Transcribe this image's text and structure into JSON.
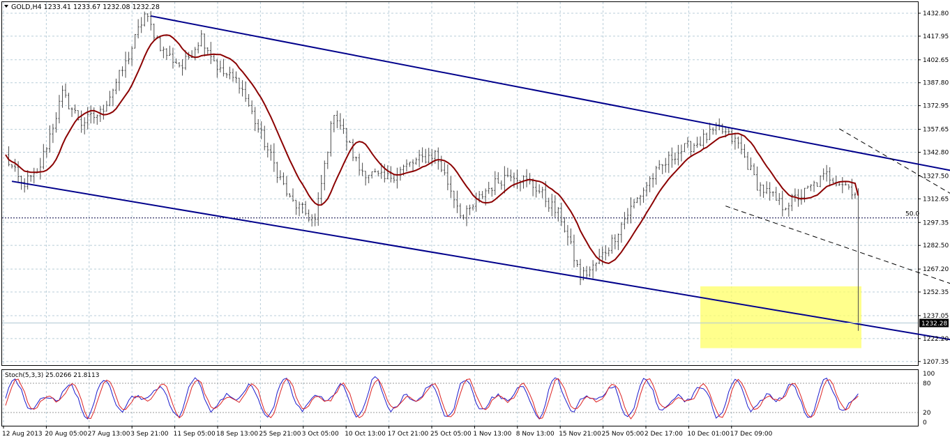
{
  "chart_data": [
    {
      "type": "candlestick",
      "symbol_header": "GOLD,H4  1233.41 1233.67 1232.08 1232.28",
      "price_ticks": [
        "1432.80",
        "1417.95",
        "1402.65",
        "1387.80",
        "1372.95",
        "1357.65",
        "1342.80",
        "1327.50",
        "1312.65",
        "1297.35",
        "1282.50",
        "1267.20",
        "1252.35",
        "1237.05",
        "1222.20",
        "1207.35"
      ],
      "ylim": [
        1205,
        1440
      ],
      "current_price": {
        "value": 1232.28,
        "label": "1232.28"
      },
      "fib_level": {
        "value": 1300.3,
        "label": "50.0"
      },
      "x_labels": [
        "12 Aug 2013",
        "20 Aug 05:00",
        "27 Aug 13:00",
        "3 Sep 21:00",
        "11 Sep 05:00",
        "18 Sep 13:00",
        "25 Sep 21:00",
        "3 Oct 05:00",
        "10 Oct 13:00",
        "17 Oct 21:00",
        "25 Oct 05:00",
        "1 Nov 13:00",
        "8 Nov 13:00",
        "15 Nov 21:00",
        "25 Nov 05:00",
        "2 Dec 17:00",
        "10 Dec 01:00",
        "17 Dec 09:00"
      ],
      "bars_count": 270,
      "price_path": [
        [
          0,
          1340
        ],
        [
          5,
          1322
        ],
        [
          10,
          1328
        ],
        [
          18,
          1380
        ],
        [
          24,
          1362
        ],
        [
          30,
          1368
        ],
        [
          38,
          1400
        ],
        [
          44,
          1432
        ],
        [
          50,
          1408
        ],
        [
          56,
          1398
        ],
        [
          62,
          1418
        ],
        [
          68,
          1395
        ],
        [
          74,
          1388
        ],
        [
          80,
          1358
        ],
        [
          90,
          1312
        ],
        [
          98,
          1298
        ],
        [
          104,
          1370
        ],
        [
          112,
          1332
        ],
        [
          120,
          1325
        ],
        [
          128,
          1335
        ],
        [
          136,
          1342
        ],
        [
          145,
          1300
        ],
        [
          152,
          1318
        ],
        [
          160,
          1330
        ],
        [
          168,
          1320
        ],
        [
          176,
          1300
        ],
        [
          182,
          1262
        ],
        [
          186,
          1268
        ],
        [
          192,
          1285
        ],
        [
          196,
          1300
        ],
        [
          204,
          1325
        ],
        [
          212,
          1342
        ],
        [
          220,
          1350
        ],
        [
          226,
          1358
        ],
        [
          232,
          1348
        ],
        [
          238,
          1322
        ],
        [
          246,
          1308
        ],
        [
          252,
          1315
        ],
        [
          260,
          1328
        ],
        [
          266,
          1322
        ],
        [
          272,
          1312
        ],
        [
          280,
          1292
        ],
        [
          288,
          1272
        ],
        [
          294,
          1278
        ],
        [
          300,
          1290
        ],
        [
          306,
          1282
        ],
        [
          312,
          1275
        ],
        [
          320,
          1255
        ],
        [
          330,
          1240
        ],
        [
          340,
          1248
        ],
        [
          350,
          1240
        ],
        [
          360,
          1226
        ],
        [
          368,
          1222
        ],
        [
          376,
          1236
        ],
        [
          386,
          1260
        ],
        [
          392,
          1262
        ],
        [
          400,
          1242
        ],
        [
          408,
          1228
        ],
        [
          416,
          1238
        ],
        [
          420,
          1232
        ]
      ],
      "moving_average": {
        "period_note": "",
        "color": "#8b0000"
      },
      "channels": [
        {
          "name": "",
          "color": "#00008b",
          "style": "solid",
          "points": [
            [
              46,
              1431
            ],
            [
              388,
              1296
            ]
          ]
        },
        {
          "name": "",
          "color": "#00008b",
          "style": "solid",
          "points": [
            [
              2,
              1324
            ],
            [
              350,
              1204
            ]
          ]
        },
        {
          "name": "",
          "color": "#000000",
          "style": "dashed",
          "points": [
            [
              264,
              1358
            ],
            [
              385,
              1214
            ]
          ]
        },
        {
          "name": "",
          "color": "#000000",
          "style": "dashed",
          "points": [
            [
              228,
              1308
            ],
            [
              350,
              1222
            ]
          ]
        }
      ],
      "highlight_zone": {
        "color": "#ffff66",
        "y_range": [
          1216,
          1256
        ]
      }
    },
    {
      "type": "line",
      "title": "Stoch(5,3,3) 25.0266 21.8113",
      "ylim": [
        0,
        100
      ],
      "y_ticks": [
        "100",
        "80",
        "20",
        "0"
      ],
      "levels": [
        20,
        80
      ],
      "series": [
        {
          "name": "",
          "color": "#1a1acc"
        },
        {
          "name": "",
          "color": "#dd2222"
        }
      ]
    }
  ],
  "colors": {
    "background": "#ffffff",
    "grid": "#b8cdd8",
    "candle": "#4a4a4a",
    "moving_average": "#8b0000",
    "channel": "#00008b",
    "zone": "#ffff66",
    "stoch_main": "#1a1acc",
    "stoch_signal": "#dd2222"
  }
}
